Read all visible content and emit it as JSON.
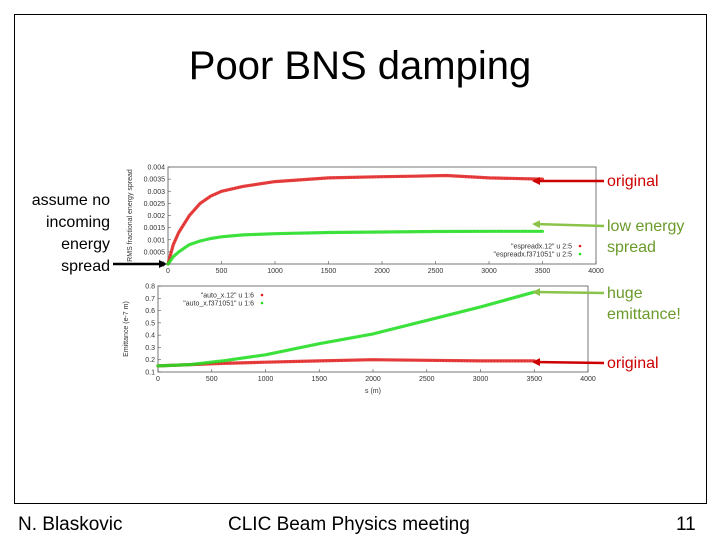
{
  "title": "Poor BNS damping",
  "left_note": "assume no incoming energy spread",
  "footer": {
    "author": "N. Blaskovic",
    "meeting": "CLIC Beam Physics meeting",
    "page": "11"
  },
  "annotations": {
    "original_top": "original",
    "low_energy": "low energy spread",
    "huge_emittance": "huge emittance!",
    "original_bottom": "original"
  },
  "colors": {
    "red_series": "#e02020",
    "green_series": "#22dd22",
    "arrow_red": "#cc0000",
    "arrow_green": "#8bc34a"
  },
  "chart_data": [
    {
      "type": "line",
      "title": "",
      "xlabel": "",
      "ylabel": "RMS fractional energy spread",
      "xlim": [
        0,
        4000
      ],
      "ylim": [
        0,
        0.004
      ],
      "x_ticks": [
        "0",
        "500",
        "1000",
        "1500",
        "2000",
        "2500",
        "3000",
        "3500",
        "4000"
      ],
      "y_ticks": [
        "0",
        "0.0005",
        "0.001",
        "0.0015",
        "0.002",
        "0.0025",
        "0.003",
        "0.0035",
        "0.004"
      ],
      "legend_position": "bottom-right",
      "series": [
        {
          "name": "\"espreadx.12\" u 2:5",
          "color": "#e02020",
          "x": [
            0,
            50,
            100,
            200,
            300,
            400,
            500,
            700,
            1000,
            1500,
            2000,
            2300,
            2600,
            3000,
            3500
          ],
          "y": [
            0.0,
            0.0008,
            0.0013,
            0.002,
            0.0025,
            0.0028,
            0.003,
            0.0032,
            0.0034,
            0.00355,
            0.0036,
            0.00362,
            0.00365,
            0.00355,
            0.0035
          ]
        },
        {
          "name": "\"espreadx.f371051\" u 2:5",
          "color": "#22dd22",
          "x": [
            0,
            50,
            100,
            200,
            300,
            400,
            500,
            700,
            1000,
            1500,
            2000,
            2500,
            3000,
            3500
          ],
          "y": [
            0.0,
            0.0003,
            0.0005,
            0.0008,
            0.00095,
            0.00105,
            0.00112,
            0.0012,
            0.00125,
            0.0013,
            0.00132,
            0.00134,
            0.00135,
            0.00135
          ]
        }
      ]
    },
    {
      "type": "line",
      "title": "",
      "xlabel": "s (m)",
      "ylabel": "Emittance (e-7 m)",
      "xlim": [
        0,
        4000
      ],
      "ylim": [
        0.1,
        0.8
      ],
      "x_ticks": [
        "0",
        "500",
        "1000",
        "1500",
        "2000",
        "2500",
        "3000",
        "3500",
        "4000"
      ],
      "y_ticks": [
        "0.1",
        "0.2",
        "0.3",
        "0.4",
        "0.5",
        "0.6",
        "0.7",
        "0.8"
      ],
      "legend_position": "top-left",
      "series": [
        {
          "name": "\"auto_x.12\" u 1:6",
          "color": "#e02020",
          "x": [
            0,
            300,
            600,
            1000,
            1500,
            2000,
            2500,
            3000,
            3500
          ],
          "y": [
            0.15,
            0.16,
            0.17,
            0.18,
            0.19,
            0.2,
            0.195,
            0.19,
            0.19
          ]
        },
        {
          "name": "\"auto_x.f371051\" u 1:6",
          "color": "#22dd22",
          "x": [
            0,
            300,
            600,
            1000,
            1500,
            2000,
            2500,
            3000,
            3500
          ],
          "y": [
            0.15,
            0.16,
            0.19,
            0.24,
            0.33,
            0.41,
            0.52,
            0.63,
            0.75
          ]
        }
      ]
    }
  ]
}
